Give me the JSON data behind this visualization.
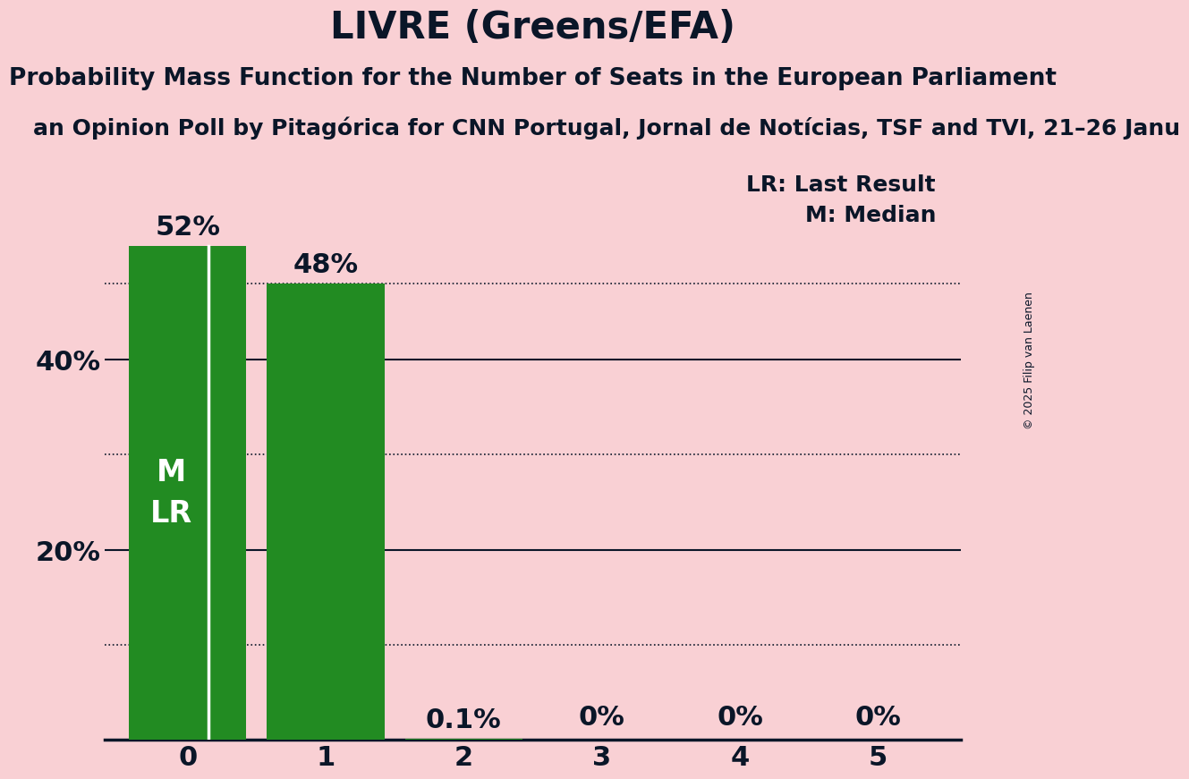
{
  "title": "LIVRE (Greens/EFA)",
  "subtitle": "Probability Mass Function for the Number of Seats in the European Parliament",
  "source_line": "an Opinion Poll by Pitagórica for CNN Portugal, Jornal de Notícias, TSF and TVI, 21–26 Janu",
  "copyright": "© 2025 Filip van Laenen",
  "categories": [
    0,
    1,
    2,
    3,
    4,
    5
  ],
  "values": [
    0.52,
    0.48,
    0.001,
    0.0,
    0.0,
    0.0
  ],
  "value_labels": [
    "52%",
    "48%",
    "0.1%",
    "0%",
    "0%",
    "0%"
  ],
  "bar_color": "#228B22",
  "background_color": "#f9d0d4",
  "title_color": "#0a1628",
  "bar_label_color_dark": "#0a1628",
  "bar_label_color_light": "#ffffff",
  "ylim": [
    0,
    0.6
  ],
  "yticks": [
    0.0,
    0.2,
    0.4
  ],
  "ytick_labels": [
    "",
    "20%",
    "40%"
  ],
  "solid_hlines": [
    0.2,
    0.4
  ],
  "dotted_hlines": [
    0.1,
    0.3,
    0.48
  ],
  "legend_lr": "LR: Last Result",
  "legend_m": "M: Median",
  "title_fontsize": 30,
  "subtitle_fontsize": 19,
  "source_fontsize": 18,
  "axis_fontsize": 22,
  "bar_label_fontsize": 22,
  "inside_label_fontsize": 24,
  "legend_fontsize": 18,
  "copyright_fontsize": 9
}
